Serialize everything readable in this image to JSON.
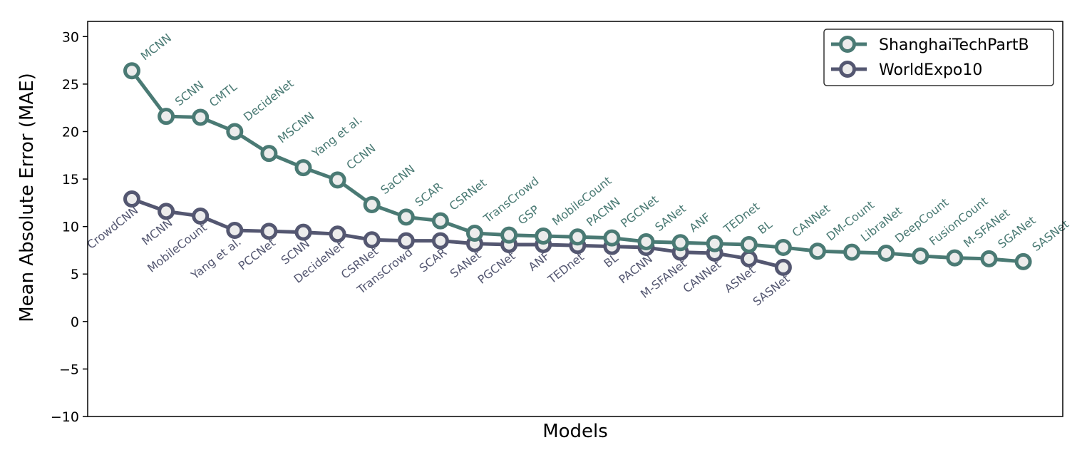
{
  "chart_data": {
    "type": "line",
    "title": "",
    "xlabel": "Models",
    "ylabel": "Mean Absolute Error (MAE)",
    "ylim": [
      -10,
      31.6
    ],
    "yticks": [
      -10,
      -5,
      0,
      5,
      10,
      15,
      20,
      25,
      30
    ],
    "grid": false,
    "legend_position": "top-right",
    "series": [
      {
        "name": "ShanghaiTechPartB",
        "color": "#4a7a74",
        "labels": [
          "MCNN",
          "SCNN",
          "CMTL",
          "DecideNet",
          "MSCNN",
          "Yang et al.",
          "CCNN",
          "SaCNN",
          "SCAR",
          "CSRNet",
          "TransCrowd",
          "GSP",
          "MobileCount",
          "PACNN",
          "PGCNet",
          "SANet",
          "ANF",
          "TEDnet",
          "BL",
          "CANNet",
          "DM-Count",
          "LibraNet",
          "DeepCount",
          "FusionCount",
          "M-SFANet",
          "SGANet",
          "SASNet"
        ],
        "values": [
          26.4,
          21.6,
          21.5,
          20.0,
          17.7,
          16.2,
          14.9,
          12.3,
          11.0,
          10.6,
          9.3,
          9.1,
          9.0,
          8.9,
          8.8,
          8.4,
          8.3,
          8.2,
          8.1,
          7.8,
          7.4,
          7.3,
          7.2,
          6.9,
          6.7,
          6.6,
          6.3
        ]
      },
      {
        "name": "WorldExpo10",
        "color": "#545771",
        "labels": [
          "CrowdCNN",
          "MCNN",
          "MobileCount",
          "Yang et al.",
          "PCCNet",
          "SCNN",
          "DecideNet",
          "CSRNet",
          "TransCrowd",
          "SCAR",
          "SANet",
          "PGCNet",
          "ANF",
          "TEDnet",
          "BL",
          "PACNN",
          "M-SFANet",
          "CANNet",
          "ASNet",
          "SASNet"
        ],
        "values": [
          12.9,
          11.6,
          11.1,
          9.6,
          9.5,
          9.4,
          9.2,
          8.6,
          8.5,
          8.5,
          8.2,
          8.1,
          8.1,
          8.0,
          7.9,
          7.8,
          7.3,
          7.2,
          6.6,
          5.7
        ]
      }
    ]
  }
}
